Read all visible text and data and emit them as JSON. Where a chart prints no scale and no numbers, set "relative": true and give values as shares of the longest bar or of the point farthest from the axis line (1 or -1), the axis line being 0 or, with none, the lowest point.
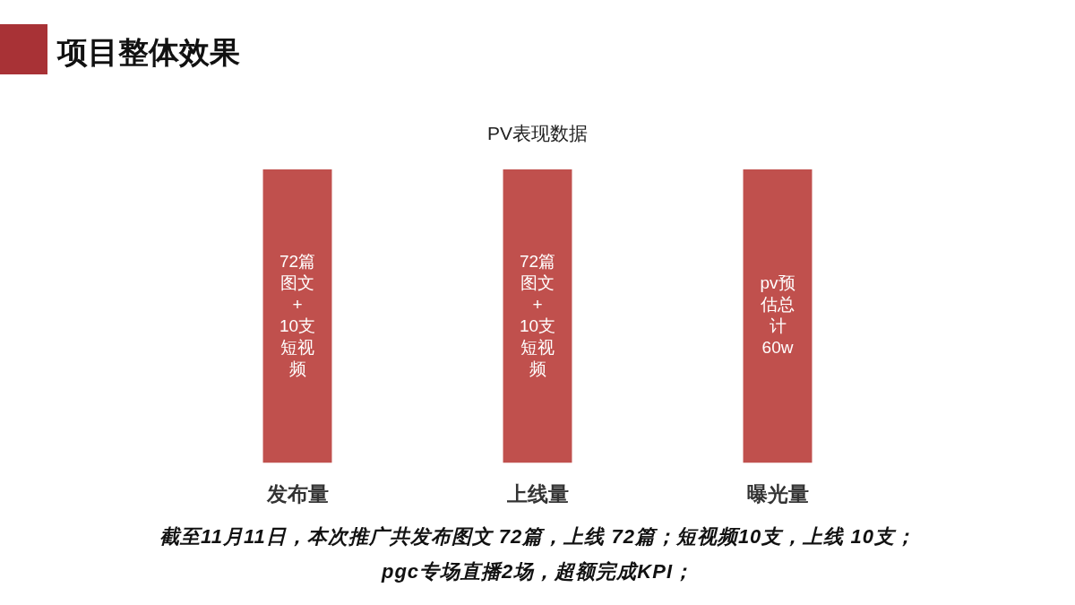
{
  "chart_data": {
    "type": "bar",
    "title": "项目整体效果",
    "subtitle": "PV表现数据",
    "categories": [
      "发布量",
      "上线量",
      "曝光量"
    ],
    "values": [
      1,
      1,
      1
    ],
    "relative": true,
    "color": "#c0504d",
    "annotations": [
      "72篇图文 + 10支短视频",
      "72篇图文 + 10支短视频",
      "pv预估总计60w",
      "截至11月11日，本次推广共发布图文 72篇，上线 72篇；短视频10支，上线 10支；",
      "pgc专场直播2场，超额完成KPI；"
    ]
  }
}
